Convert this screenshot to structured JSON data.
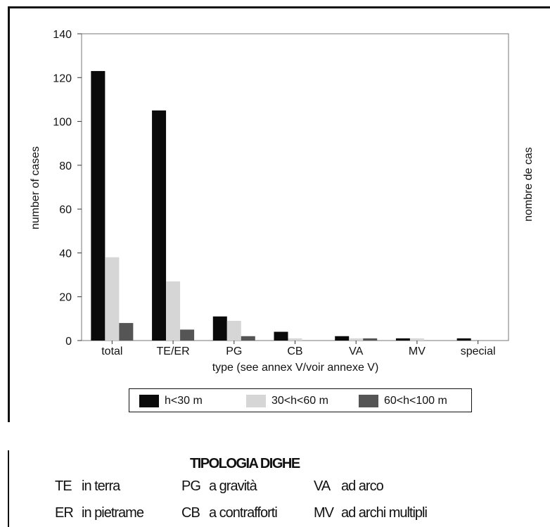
{
  "chart_data": {
    "type": "bar",
    "categories": [
      "total",
      "TE/ER",
      "PG",
      "CB",
      "VA",
      "MV",
      "special"
    ],
    "series": [
      {
        "name": "h<30 m",
        "color": "#0a0a0a",
        "values": [
          123,
          105,
          11,
          4,
          2,
          1,
          1
        ]
      },
      {
        "name": "30<h<60 m",
        "color": "#d6d6d6",
        "values": [
          38,
          27,
          9,
          1,
          1,
          1,
          0
        ]
      },
      {
        "name": "60<h<100 m",
        "color": "#555555",
        "values": [
          8,
          5,
          2,
          0,
          1,
          0,
          0
        ]
      }
    ],
    "xlabel": "type (see annex V/voir annexe V)",
    "ylabel": "number of cases",
    "ylabel_right": "nombre de cas",
    "ylim": [
      0,
      140
    ],
    "yticks": [
      0,
      20,
      40,
      60,
      80,
      100,
      120,
      140
    ],
    "grid": false,
    "legend_position": "bottom"
  },
  "typology": {
    "title": "TIPOLOGIA DIGHE",
    "rows": [
      [
        {
          "code": "TE",
          "desc": "in terra"
        },
        {
          "code": "PG",
          "desc": "a gravità"
        },
        {
          "code": "VA",
          "desc": "ad arco"
        }
      ],
      [
        {
          "code": "ER",
          "desc": "in pietrame"
        },
        {
          "code": "CB",
          "desc": "a contrafforti"
        },
        {
          "code": "MV",
          "desc": "ad archi multipli"
        }
      ]
    ]
  }
}
